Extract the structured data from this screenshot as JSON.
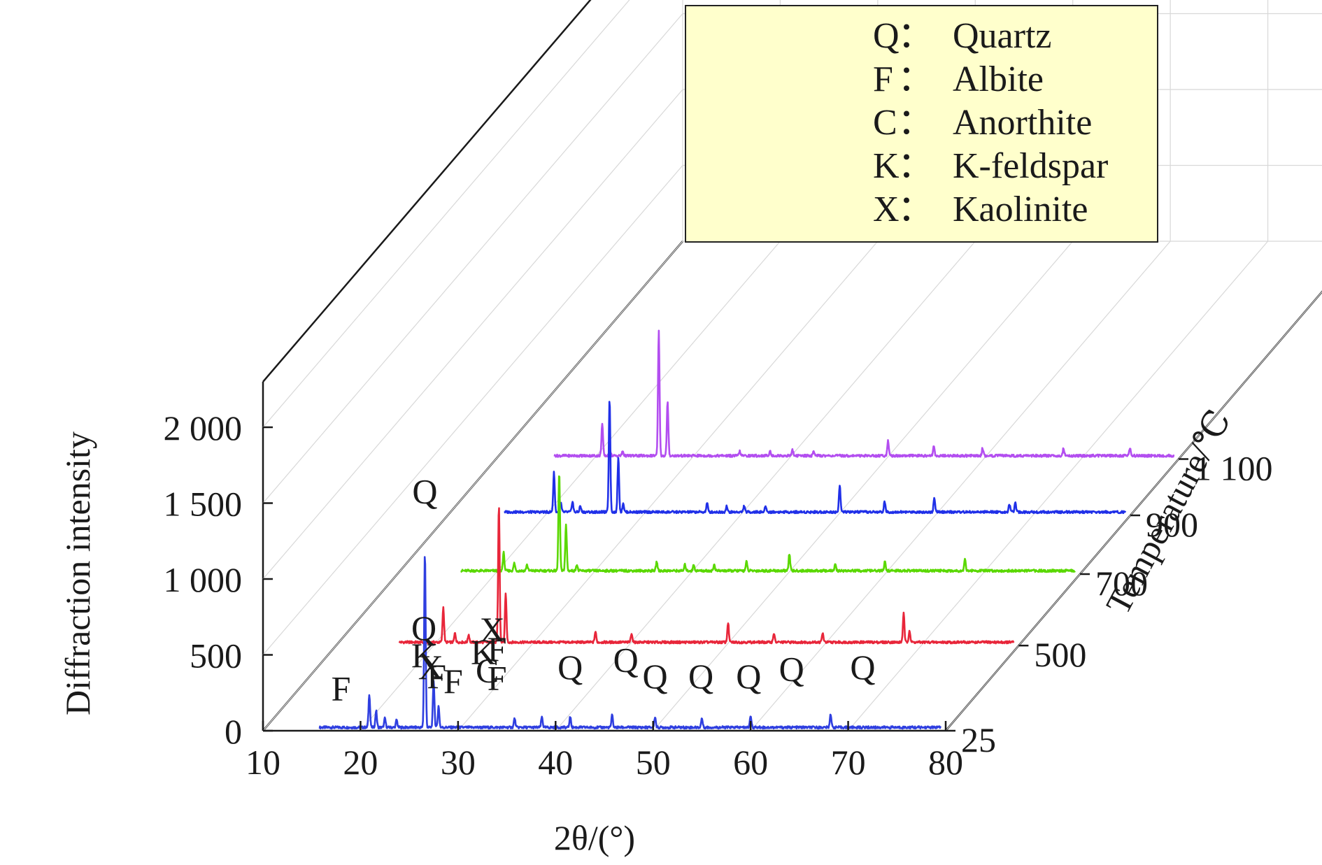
{
  "chart_data": {
    "type": "line",
    "subtype": "3d-waterfall",
    "xlabel": "2θ/(°)",
    "ylabel": "Diffraction intensity",
    "zlabel": "Temperature/℃",
    "xlim": [
      10,
      80
    ],
    "ylim": [
      0,
      2300
    ],
    "x_ticks": [
      "10",
      "20",
      "30",
      "40",
      "50",
      "60",
      "70",
      "80"
    ],
    "y_ticks": [
      "0",
      "500",
      "1 000",
      "1 500",
      "2 000"
    ],
    "z_ticks": [
      "25",
      "500",
      "700",
      "900",
      "1 100"
    ],
    "grid": true,
    "legend": {
      "position": "top-right",
      "entries": [
        {
          "symbol": "Q",
          "sep": "：",
          "name": "Quartz"
        },
        {
          "symbol": "F",
          "sep": "：",
          "name": "Albite"
        },
        {
          "symbol": "C",
          "sep": "：",
          "name": "Anorthite"
        },
        {
          "symbol": "K",
          "sep": "：",
          "name": "K-feldspar"
        },
        {
          "symbol": "X",
          "sep": "：",
          "name": "Kaolinite"
        }
      ]
    },
    "series": [
      {
        "temperature": "25",
        "color": "#2f3fe0",
        "peaks": [
          [
            12.2,
            25
          ],
          [
            20.9,
            220
          ],
          [
            21.6,
            110
          ],
          [
            22.5,
            60
          ],
          [
            23.7,
            50
          ],
          [
            26.6,
            1150
          ],
          [
            27.5,
            310
          ],
          [
            28.0,
            140
          ],
          [
            35.8,
            60
          ],
          [
            38.6,
            70
          ],
          [
            41.5,
            70
          ],
          [
            45.8,
            80
          ],
          [
            50.2,
            70
          ],
          [
            55.0,
            60
          ],
          [
            60.0,
            80
          ],
          [
            68.2,
            90
          ]
        ]
      },
      {
        "temperature": "500",
        "color": "#e8263a",
        "peaks": [
          [
            21.0,
            230
          ],
          [
            22.2,
            60
          ],
          [
            23.6,
            50
          ],
          [
            26.7,
            900
          ],
          [
            27.4,
            320
          ],
          [
            36.6,
            70
          ],
          [
            40.3,
            60
          ],
          [
            50.2,
            130
          ],
          [
            54.9,
            60
          ],
          [
            59.9,
            60
          ],
          [
            68.2,
            190
          ],
          [
            68.8,
            80
          ]
        ]
      },
      {
        "temperature": "700",
        "color": "#5ad800",
        "peaks": [
          [
            20.9,
            120
          ],
          [
            22.0,
            50
          ],
          [
            23.3,
            40
          ],
          [
            26.6,
            650
          ],
          [
            27.3,
            300
          ],
          [
            28.4,
            40
          ],
          [
            36.6,
            60
          ],
          [
            39.5,
            40
          ],
          [
            40.4,
            40
          ],
          [
            42.5,
            40
          ],
          [
            45.8,
            60
          ],
          [
            50.2,
            110
          ],
          [
            54.9,
            40
          ],
          [
            60.0,
            60
          ],
          [
            68.2,
            80
          ]
        ]
      },
      {
        "temperature": "900",
        "color": "#2030e8",
        "peaks": [
          [
            13.0,
            30
          ],
          [
            20.9,
            260
          ],
          [
            21.6,
            60
          ],
          [
            22.8,
            70
          ],
          [
            23.6,
            40
          ],
          [
            26.6,
            750
          ],
          [
            27.5,
            360
          ],
          [
            28.0,
            60
          ],
          [
            36.6,
            60
          ],
          [
            38.6,
            40
          ],
          [
            40.4,
            40
          ],
          [
            42.6,
            40
          ],
          [
            50.2,
            180
          ],
          [
            54.8,
            70
          ],
          [
            59.9,
            90
          ],
          [
            67.6,
            50
          ],
          [
            68.2,
            60
          ]
        ]
      },
      {
        "temperature": "1 100",
        "color": "#b34ef0",
        "peaks": [
          [
            20.9,
            210
          ],
          [
            21.7,
            40
          ],
          [
            23.0,
            30
          ],
          [
            26.7,
            820
          ],
          [
            27.6,
            350
          ],
          [
            35.0,
            30
          ],
          [
            38.1,
            30
          ],
          [
            40.4,
            40
          ],
          [
            42.6,
            30
          ],
          [
            50.2,
            100
          ],
          [
            54.9,
            60
          ],
          [
            59.9,
            50
          ],
          [
            68.2,
            50
          ],
          [
            75.0,
            50
          ]
        ]
      }
    ],
    "peak_labels": [
      {
        "text": "F",
        "x": 18.0,
        "y": 200
      },
      {
        "text": "Q",
        "x": 26.6,
        "y": 1500
      },
      {
        "text": "Q",
        "x": 26.5,
        "y": 600
      },
      {
        "text": "K",
        "x": 26.5,
        "y": 420
      },
      {
        "text": "X",
        "x": 27.2,
        "y": 340
      },
      {
        "text": "F",
        "x": 27.8,
        "y": 280
      },
      {
        "text": "F",
        "x": 29.5,
        "y": 250
      },
      {
        "text": "X",
        "x": 33.5,
        "y": 590
      },
      {
        "text": "K",
        "x": 32.6,
        "y": 440
      },
      {
        "text": "F",
        "x": 34.0,
        "y": 460
      },
      {
        "text": "C",
        "x": 33.0,
        "y": 320
      },
      {
        "text": "F",
        "x": 34.0,
        "y": 270
      },
      {
        "text": "Q",
        "x": 41.5,
        "y": 340
      },
      {
        "text": "Q",
        "x": 47.2,
        "y": 390
      },
      {
        "text": "Q",
        "x": 50.2,
        "y": 280
      },
      {
        "text": "Q",
        "x": 54.9,
        "y": 280
      },
      {
        "text": "Q",
        "x": 59.8,
        "y": 280
      },
      {
        "text": "Q",
        "x": 64.2,
        "y": 330
      },
      {
        "text": "Q",
        "x": 71.5,
        "y": 340
      }
    ]
  }
}
